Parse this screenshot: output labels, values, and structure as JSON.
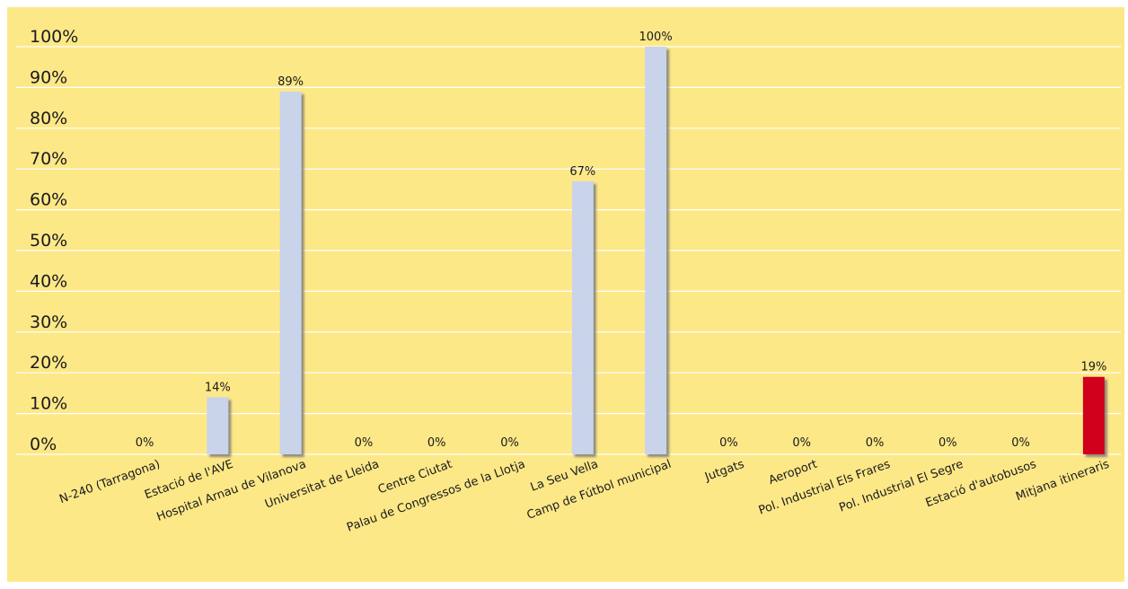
{
  "chart_data": {
    "type": "bar",
    "categories": [
      "N-240 (Tarragona)",
      "Estació  de l'AVE",
      "Hospital Arnau de Vilanova",
      "Universitat de Lleida",
      "Centre Ciutat",
      "Palau de Congressos de la Llotja",
      "La Seu Vella",
      "Camp de Fútbol municipal",
      "Jutgats",
      "Aeroport",
      "Pol. Industrial Els Frares",
      "Pol. Industrial El Segre",
      "Estació d'autobusos",
      "Mitjana itineraris"
    ],
    "values": [
      0,
      14,
      89,
      0,
      0,
      0,
      67,
      100,
      0,
      0,
      0,
      0,
      0,
      19
    ],
    "data_labels": [
      "0%",
      "14%",
      "89%",
      "0%",
      "0%",
      "0%",
      "67%",
      "100%",
      "0%",
      "0%",
      "0%",
      "0%",
      "0%",
      "19%"
    ],
    "y_ticks": [
      "0%",
      "10%",
      "20%",
      "30%",
      "40%",
      "50%",
      "60%",
      "70%",
      "80%",
      "90%",
      "100%"
    ],
    "ylim": [
      0,
      100
    ],
    "grid": true,
    "title": "",
    "xlabel": "",
    "ylabel": "",
    "colors": {
      "background": "#fde888",
      "bar": "#c9d3ea",
      "highlight_bar": "#d0021b",
      "gridline": "#ffffff",
      "shadow": "#6b6b6b"
    }
  }
}
